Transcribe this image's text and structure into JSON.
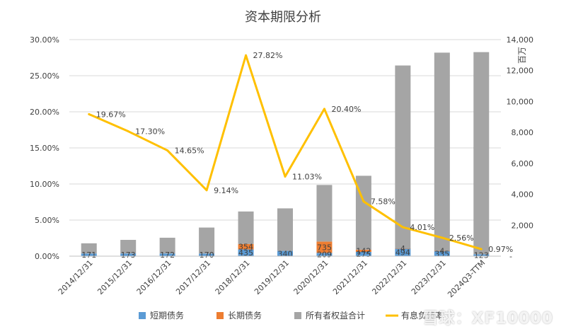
{
  "chart_data": {
    "type": "bar",
    "title": "资本期限分析",
    "y2_unit": "百万",
    "categories": [
      "2014/12/31",
      "2015/12/31",
      "2016/12/31",
      "2017/12/31",
      "2018/12/31",
      "2019/12/31",
      "2020/12/31",
      "2021/12/31",
      "2022/12/31",
      "2023/12/31",
      "2024Q3-TTM"
    ],
    "y_ticks": [
      "0.00%",
      "5.00%",
      "10.00%",
      "15.00%",
      "20.00%",
      "25.00%",
      "30.00%"
    ],
    "y2_ticks": [
      "-",
      "2,000",
      "4,000",
      "6,000",
      "8,000",
      "10,000",
      "12,000",
      "14,000"
    ],
    "ylim": [
      0,
      30
    ],
    "y2lim": [
      0,
      14000
    ],
    "series": [
      {
        "name": "短期债务",
        "kind": "bar",
        "axis": "right",
        "color": "#5B9BD5",
        "values": [
          171,
          173,
          172,
          170,
          435,
          340,
          209,
          275,
          494,
          335,
          123
        ],
        "labels": [
          "171",
          "173",
          "172",
          "170",
          "435",
          "340",
          "209",
          "275",
          "494",
          "335",
          "123"
        ]
      },
      {
        "name": "长期债务",
        "kind": "bar",
        "axis": "right",
        "color": "#ED7D31",
        "values": [
          0,
          0,
          0,
          0,
          354,
          0,
          735,
          142,
          4,
          4,
          0
        ],
        "labels": [
          "",
          "",
          "",
          "",
          "354",
          "",
          "735",
          "142",
          "4",
          "4",
          ""
        ]
      },
      {
        "name": "所有者权益合计",
        "kind": "bar",
        "axis": "right",
        "color": "#A5A5A5",
        "values": [
          660,
          880,
          1020,
          1680,
          2100,
          2750,
          3660,
          4780,
          11830,
          12820,
          13070
        ],
        "labels": []
      },
      {
        "name": "有息负债率",
        "kind": "line",
        "axis": "left",
        "color": "#FFC000",
        "values": [
          19.67,
          17.3,
          14.65,
          9.14,
          27.82,
          11.03,
          20.4,
          7.58,
          4.01,
          2.56,
          0.97
        ],
        "labels": [
          "19.67%",
          "17.30%",
          "14.65%",
          "9.14%",
          "27.82%",
          "11.03%",
          "20.40%",
          "7.58%",
          "4.01%",
          "2.56%",
          "0.97%"
        ]
      }
    ],
    "legend_position": "bottom",
    "grid": true
  },
  "watermark": "雪球：XF10000"
}
